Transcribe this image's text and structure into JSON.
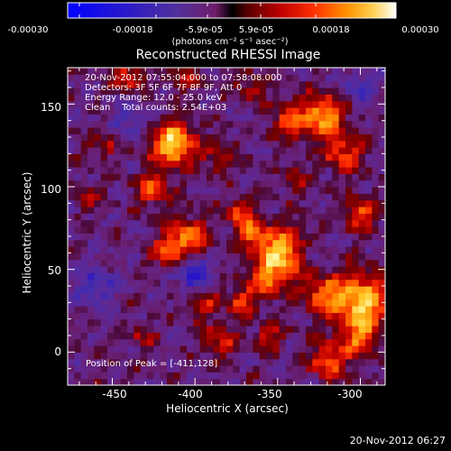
{
  "colorbar": {
    "tick_labels": [
      "-0.00030",
      "-0.00018",
      "-5.9e-05",
      "5.9e-05",
      "0.00018",
      "0.00030"
    ],
    "unit_label": "(photons cm⁻² s⁻¹ asec⁻²)",
    "range": [
      -0.0003,
      0.0003
    ]
  },
  "chart_data": {
    "type": "heatmap",
    "title": "Reconstructed RHESSI Image",
    "xlabel": "Heliocentric X (arcsec)",
    "ylabel": "Heliocentric Y (arcsec)",
    "xlim": [
      -477,
      -285
    ],
    "ylim": [
      -20,
      172
    ],
    "xticks": [
      -450,
      -400,
      -350,
      -300
    ],
    "yticks": [
      0,
      50,
      100,
      150
    ],
    "colormap": "RHESSI intensity (blue-purple-red-orange-yellow)",
    "annotations": [
      "20-Nov-2012 07:55:04.000 to 07:58:08.000",
      "Detectors: 3F 5F 6F 7F 8F 9F, Att 0",
      "Energy Range: 12.0 - 25.0 keV",
      "Clean    Total counts: 2.54E+03"
    ],
    "peak_label": "Position of Peak = [-411,128]",
    "peak": [
      -411,
      128
    ],
    "sources": [
      {
        "x": -413,
        "y": 126,
        "amp": 1.05,
        "w": 9
      },
      {
        "x": -425,
        "y": 99,
        "amp": 0.6,
        "w": 7
      },
      {
        "x": -404,
        "y": 69,
        "amp": 0.7,
        "w": 9
      },
      {
        "x": -416,
        "y": 60,
        "amp": 0.55,
        "w": 7
      },
      {
        "x": -373,
        "y": 85,
        "amp": 0.55,
        "w": 6
      },
      {
        "x": -366,
        "y": 72,
        "amp": 0.6,
        "w": 6
      },
      {
        "x": -348,
        "y": 60,
        "amp": 1.0,
        "w": 11
      },
      {
        "x": -357,
        "y": 42,
        "amp": 0.55,
        "w": 7
      },
      {
        "x": -372,
        "y": 30,
        "amp": 0.55,
        "w": 6
      },
      {
        "x": -343,
        "y": 140,
        "amp": 0.55,
        "w": 8
      },
      {
        "x": -310,
        "y": 120,
        "amp": 0.6,
        "w": 8
      },
      {
        "x": -322,
        "y": 143,
        "amp": 0.85,
        "w": 9
      },
      {
        "x": -300,
        "y": 84,
        "amp": 0.6,
        "w": 7
      },
      {
        "x": -300,
        "y": 30,
        "amp": 1.0,
        "w": 12
      },
      {
        "x": -323,
        "y": 35,
        "amp": 0.6,
        "w": 8
      },
      {
        "x": -319,
        "y": -5,
        "amp": 0.7,
        "w": 8
      },
      {
        "x": -300,
        "y": 8,
        "amp": 0.55,
        "w": 7
      },
      {
        "x": -385,
        "y": 8,
        "amp": 0.5,
        "w": 7
      },
      {
        "x": -395,
        "y": 30,
        "amp": 0.45,
        "w": 6
      },
      {
        "x": -440,
        "y": 167,
        "amp": 0.5,
        "w": 7
      },
      {
        "x": -405,
        "y": 165,
        "amp": 0.4,
        "w": 6
      },
      {
        "x": -385,
        "y": 118,
        "amp": 0.4,
        "w": 7
      },
      {
        "x": -366,
        "y": 160,
        "amp": 0.4,
        "w": 6
      },
      {
        "x": -455,
        "y": 125,
        "amp": 0.35,
        "w": 6
      },
      {
        "x": -465,
        "y": 95,
        "amp": 0.3,
        "w": 6
      },
      {
        "x": -432,
        "y": 10,
        "amp": 0.3,
        "w": 6
      },
      {
        "x": -355,
        "y": 10,
        "amp": 0.45,
        "w": 6
      },
      {
        "x": -340,
        "y": 105,
        "amp": 0.35,
        "w": 6
      },
      {
        "x": -402,
        "y": 50,
        "amp": -0.55,
        "w": 8
      },
      {
        "x": -460,
        "y": 40,
        "amp": -0.4,
        "w": 8
      },
      {
        "x": -440,
        "y": 140,
        "amp": -0.3,
        "w": 8
      },
      {
        "x": -300,
        "y": 160,
        "amp": -0.3,
        "w": 8
      },
      {
        "x": -330,
        "y": 60,
        "amp": -0.3,
        "w": 6
      }
    ]
  },
  "footer": {
    "timestamp": "20-Nov-2012 06:27"
  }
}
